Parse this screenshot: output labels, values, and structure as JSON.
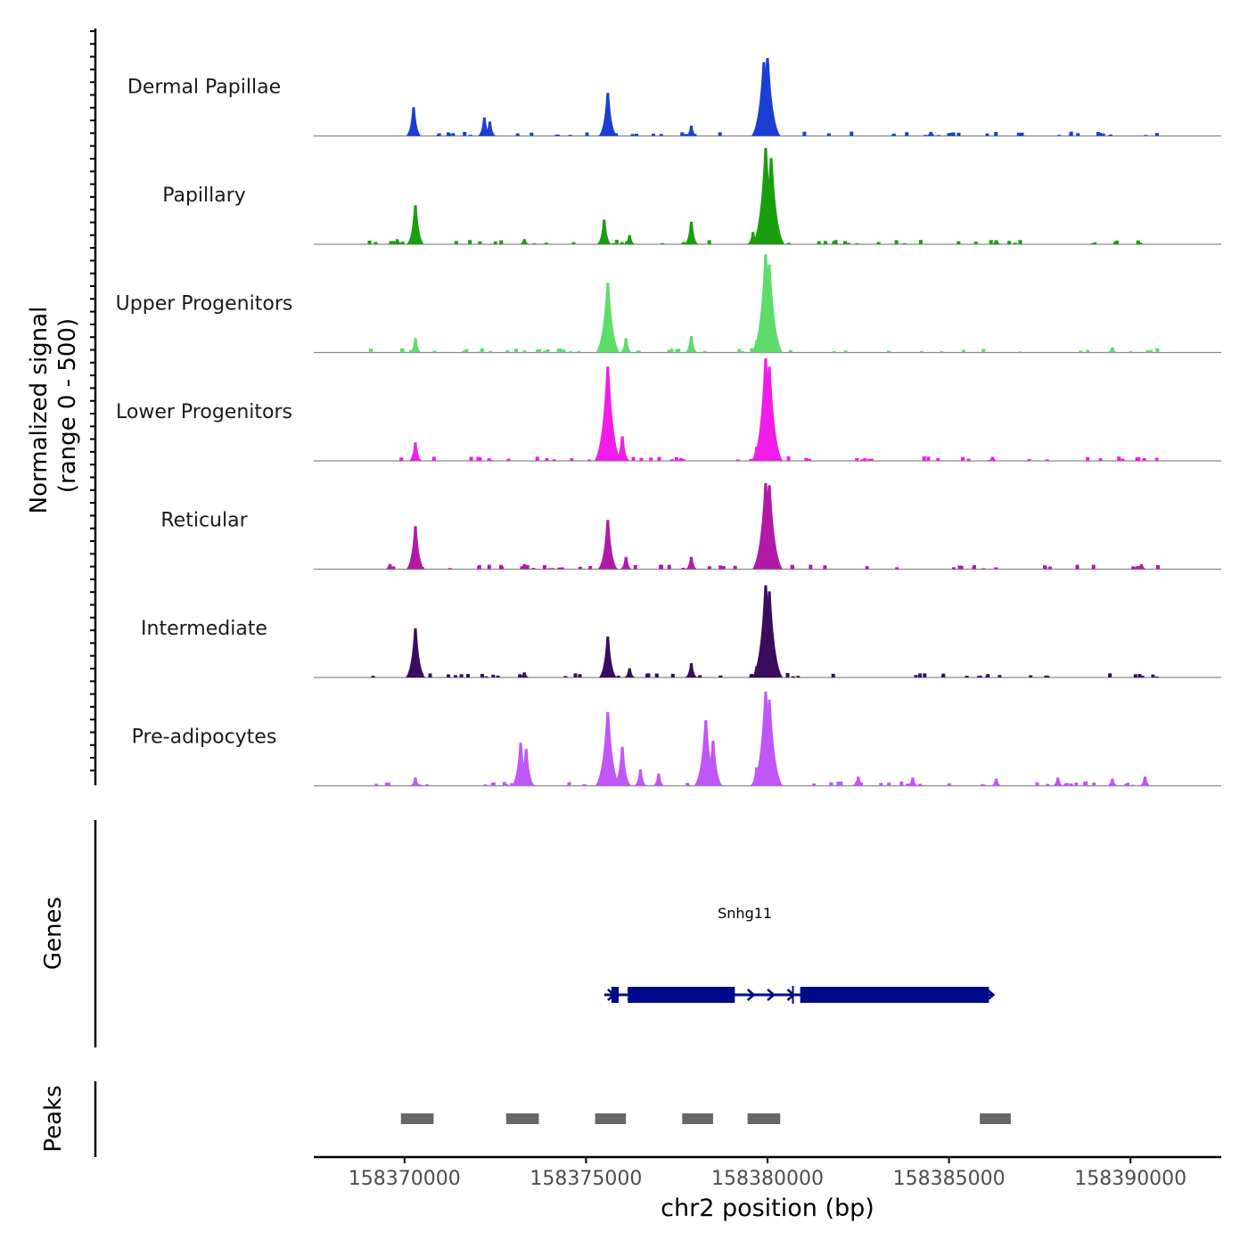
{
  "chart_data": {
    "type": "area",
    "title": "",
    "ylabel_line1": "Normalized signal",
    "ylabel_line2": "(range 0 - 500)",
    "xlabel": "chr2 position (bp)",
    "xlim": [
      158367500,
      158392500
    ],
    "ylim": [
      0,
      500
    ],
    "x_ticks": [
      158370000,
      158375000,
      158380000,
      158385000,
      158390000
    ],
    "x_tick_labels": [
      "158370000",
      "158375000",
      "158380000",
      "158385000",
      "158390000"
    ],
    "series": [
      {
        "name": "Dermal Papillae",
        "color": "#1b3fd3",
        "peaks": [
          [
            158370250,
            140
          ],
          [
            158372200,
            90
          ],
          [
            158372350,
            70
          ],
          [
            158375600,
            210
          ],
          [
            158377900,
            50
          ],
          [
            158379900,
            360
          ],
          [
            158380000,
            380
          ],
          [
            158384500,
            20
          ]
        ]
      },
      {
        "name": "Papillary",
        "color": "#1a9e0f",
        "peaks": [
          [
            158369800,
            25
          ],
          [
            158370300,
            190
          ],
          [
            158373300,
            25
          ],
          [
            158375500,
            120
          ],
          [
            158376200,
            45
          ],
          [
            158377900,
            110
          ],
          [
            158379600,
            60
          ],
          [
            158379950,
            470
          ],
          [
            158380100,
            420
          ],
          [
            158386300,
            20
          ]
        ]
      },
      {
        "name": "Upper Progenitors",
        "color": "#5edb6b",
        "peaks": [
          [
            158370300,
            70
          ],
          [
            158375600,
            340
          ],
          [
            158376100,
            70
          ],
          [
            158377900,
            80
          ],
          [
            158379700,
            60
          ],
          [
            158379950,
            480
          ],
          [
            158380050,
            430
          ],
          [
            158389500,
            25
          ]
        ]
      },
      {
        "name": "Lower Progenitors",
        "color": "#f01de8",
        "peaks": [
          [
            158370300,
            90
          ],
          [
            158375600,
            460
          ],
          [
            158376000,
            120
          ],
          [
            158379700,
            70
          ],
          [
            158379950,
            500
          ],
          [
            158380050,
            460
          ],
          [
            158386200,
            20
          ]
        ]
      },
      {
        "name": "Reticular",
        "color": "#b01aa6",
        "peaks": [
          [
            158369600,
            25
          ],
          [
            158370300,
            210
          ],
          [
            158373300,
            25
          ],
          [
            158375600,
            240
          ],
          [
            158376100,
            60
          ],
          [
            158377900,
            60
          ],
          [
            158379950,
            420
          ],
          [
            158380050,
            410
          ],
          [
            158390300,
            25
          ]
        ]
      },
      {
        "name": "Intermediate",
        "color": "#3b0c5e",
        "peaks": [
          [
            158370300,
            240
          ],
          [
            158373300,
            25
          ],
          [
            158375600,
            200
          ],
          [
            158376200,
            45
          ],
          [
            158377900,
            70
          ],
          [
            158379700,
            55
          ],
          [
            158379950,
            450
          ],
          [
            158380050,
            420
          ]
        ]
      },
      {
        "name": "Pre-adipocytes",
        "color": "#c056f5",
        "peaks": [
          [
            158370300,
            40
          ],
          [
            158373200,
            210
          ],
          [
            158373350,
            180
          ],
          [
            158375600,
            360
          ],
          [
            158376000,
            190
          ],
          [
            158376500,
            80
          ],
          [
            158377000,
            60
          ],
          [
            158378300,
            320
          ],
          [
            158378500,
            220
          ],
          [
            158379700,
            90
          ],
          [
            158379950,
            460
          ],
          [
            158380050,
            420
          ],
          [
            158382500,
            45
          ],
          [
            158384000,
            40
          ],
          [
            158386300,
            35
          ],
          [
            158388000,
            40
          ],
          [
            158389500,
            35
          ],
          [
            158390400,
            45
          ]
        ]
      }
    ],
    "genes_track": {
      "label": "Genes",
      "genes": [
        {
          "name": "Snhg11",
          "color": "#000b8a",
          "start": 158375500,
          "end": 158386200,
          "exons": [
            [
              158375700,
              158375900
            ],
            [
              158376150,
              158379100
            ],
            [
              158380900,
              158386100
            ]
          ]
        }
      ]
    },
    "peaks_track": {
      "label": "Peaks",
      "color": "#666666",
      "regions": [
        [
          158369900,
          158370800
        ],
        [
          158372800,
          158373700
        ],
        [
          158375250,
          158376100
        ],
        [
          158377650,
          158378500
        ],
        [
          158379450,
          158380350
        ],
        [
          158385850,
          158386700
        ]
      ]
    }
  }
}
